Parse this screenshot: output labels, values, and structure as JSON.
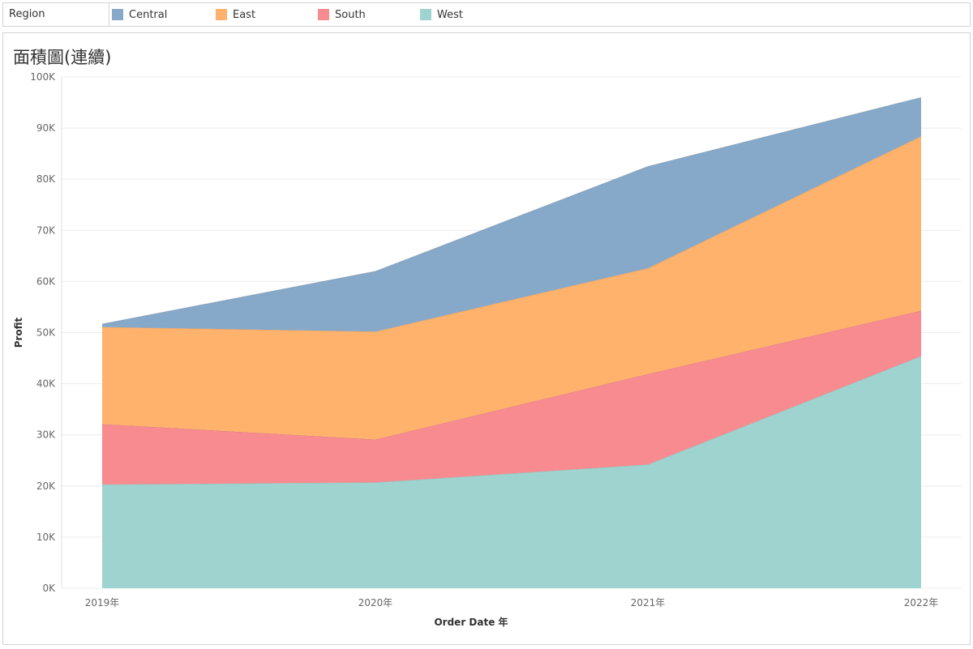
{
  "legend": {
    "title": "Region",
    "items": [
      {
        "label": "Central",
        "color": "#86a9c9"
      },
      {
        "label": "East",
        "color": "#ffb26b"
      },
      {
        "label": "South",
        "color": "#f88b8f"
      },
      {
        "label": "West",
        "color": "#9fd3cf"
      }
    ]
  },
  "chart_data": {
    "type": "area",
    "stacked": true,
    "title": "面積圖(連續)",
    "xlabel": "Order Date 年",
    "ylabel": "Profit",
    "categories": [
      "2019年",
      "2020年",
      "2021年",
      "2022年"
    ],
    "ylim": [
      0,
      100000
    ],
    "yticks": [
      {
        "value": 0,
        "label": "0K"
      },
      {
        "value": 10000,
        "label": "10K"
      },
      {
        "value": 20000,
        "label": "20K"
      },
      {
        "value": 30000,
        "label": "30K"
      },
      {
        "value": 40000,
        "label": "40K"
      },
      {
        "value": 50000,
        "label": "50K"
      },
      {
        "value": 60000,
        "label": "60K"
      },
      {
        "value": 70000,
        "label": "70K"
      },
      {
        "value": 80000,
        "label": "80K"
      },
      {
        "value": 90000,
        "label": "90K"
      },
      {
        "value": 100000,
        "label": "100K"
      }
    ],
    "grid": true,
    "legend_position": "top",
    "series": [
      {
        "name": "West",
        "values": [
          20300,
          20700,
          24200,
          45400
        ],
        "color": "#9fd3cf"
      },
      {
        "name": "South",
        "values": [
          11800,
          8400,
          17700,
          8900
        ],
        "color": "#f88b8f"
      },
      {
        "name": "East",
        "values": [
          19000,
          21100,
          20700,
          34100
        ],
        "color": "#ffb26b"
      },
      {
        "name": "Central",
        "values": [
          600,
          11800,
          19900,
          7600
        ],
        "color": "#86a9c9"
      }
    ]
  }
}
